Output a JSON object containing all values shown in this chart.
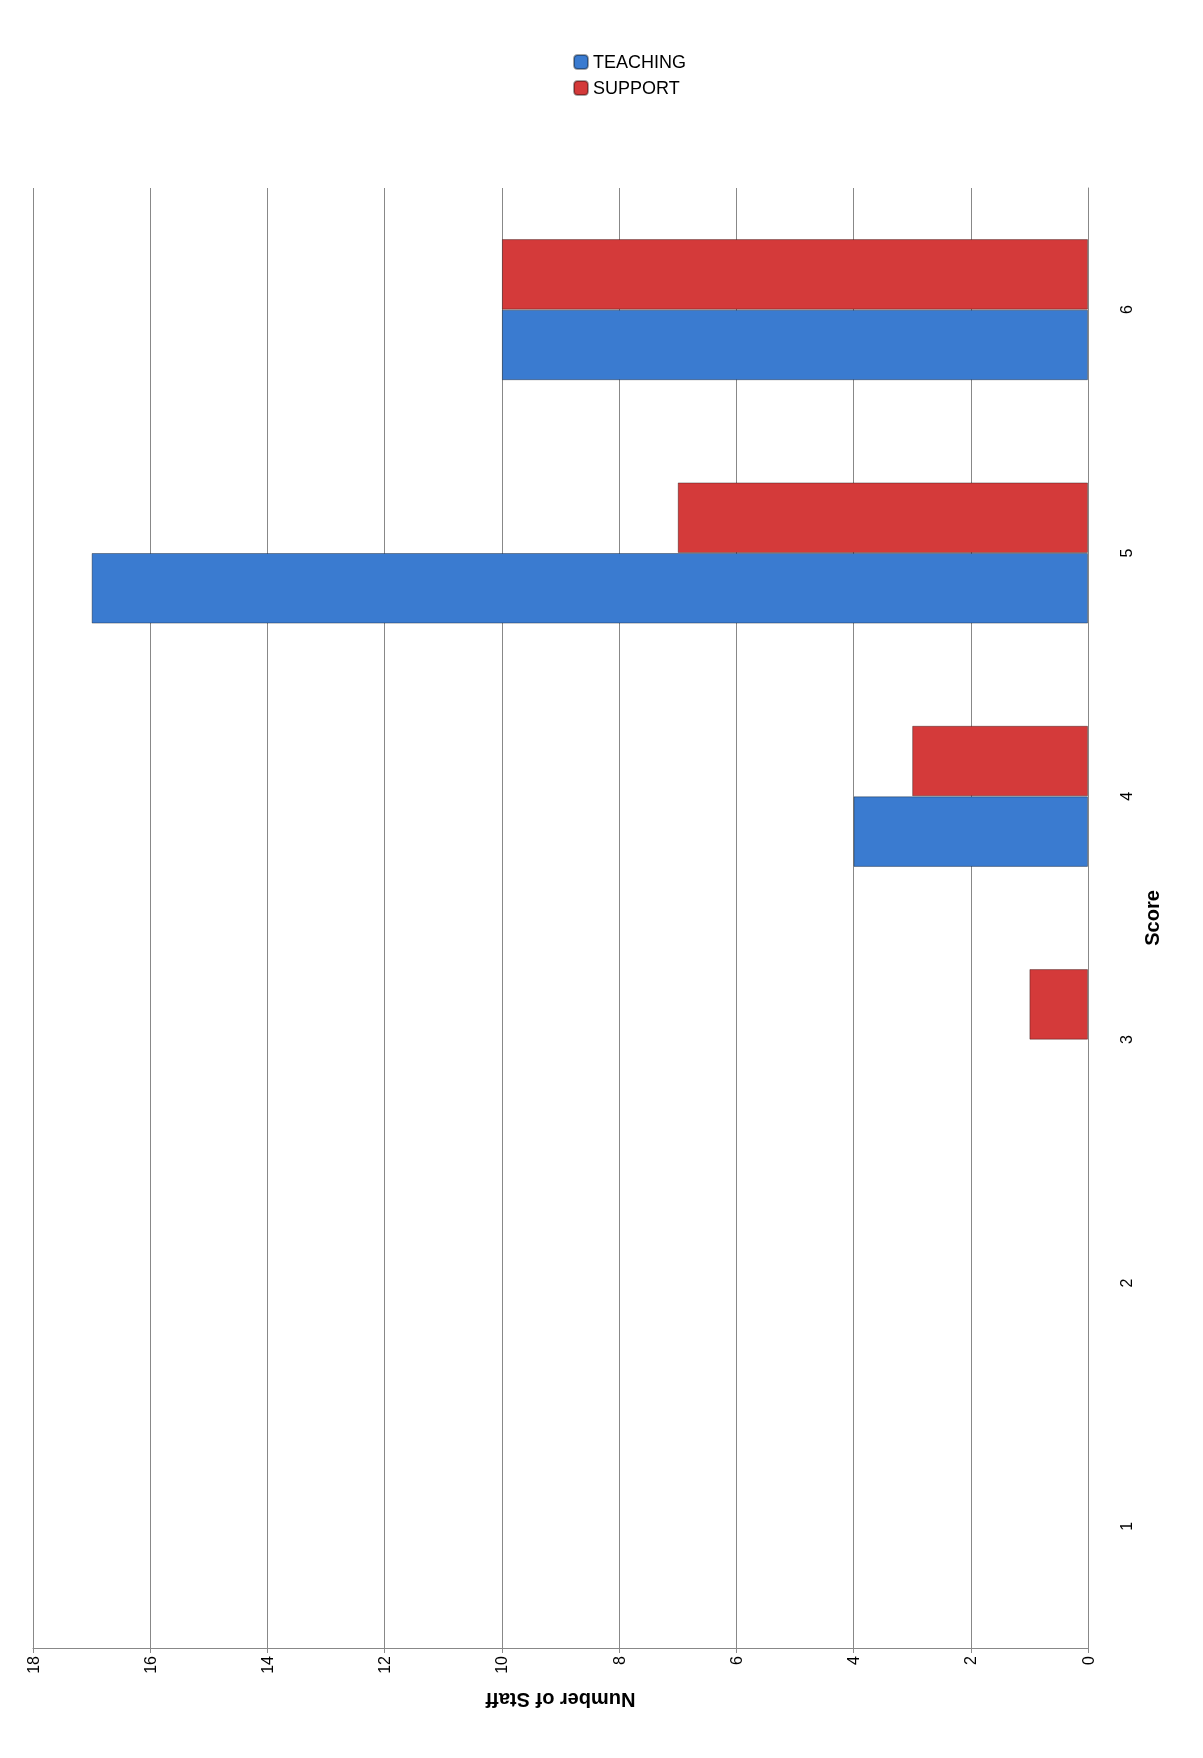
{
  "chart_data": {
    "type": "bar",
    "orientation": "horizontal",
    "xlabel": "Number of Staff",
    "ylabel": "Score",
    "categories": [
      "6",
      "5",
      "4",
      "3",
      "2",
      "1"
    ],
    "series": [
      {
        "name": "TEACHING",
        "color": "#3a7bd0",
        "values": [
          10,
          17,
          4,
          null,
          null,
          null
        ]
      },
      {
        "name": "SUPPORT",
        "color": "#d43a3a",
        "values": [
          10,
          7,
          3,
          1,
          null,
          null
        ]
      }
    ],
    "xlim": [
      18,
      0
    ],
    "xticks": [
      18,
      16,
      14,
      12,
      10,
      8,
      6,
      4,
      2,
      0
    ],
    "grid": "x",
    "legend": "top right"
  }
}
